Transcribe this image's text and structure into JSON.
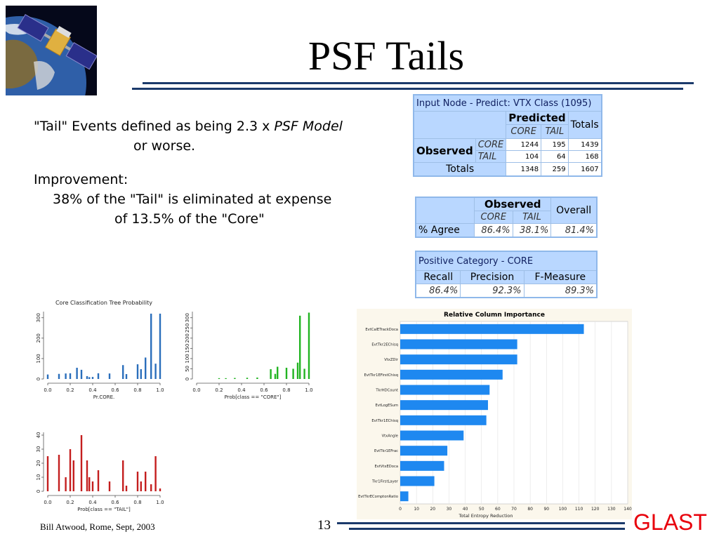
{
  "slide": {
    "title": "PSF Tails",
    "page_number": "13",
    "footer_left": "Bill Atwood,  Rome, Sept, 2003",
    "logo_text": "GLAST"
  },
  "body": {
    "line1_a": "\"Tail\" Events defined as being 2.3 x ",
    "line1_b": "PSF Model",
    "line2": "or worse.",
    "line3": "Improvement:",
    "line4": "38% of the \"Tail\" is eliminated at expense",
    "line5": "of 13.5% of the \"Core\""
  },
  "table1": {
    "title": "Input Node - Predict: VTX Class (1095)",
    "predicted": "Predicted",
    "totals_col": "Totals",
    "core": "CORE",
    "tail": "TAIL",
    "observed": "Observed",
    "totals_row": "Totals",
    "rows": [
      {
        "label": "CORE",
        "v1": "1244",
        "v2": "195",
        "v3": "1439"
      },
      {
        "label": "TAIL",
        "v1": "104",
        "v2": "64",
        "v3": "168"
      }
    ],
    "total_vals": {
      "v1": "1348",
      "v2": "259",
      "v3": "1607"
    }
  },
  "table2": {
    "observed": "Observed",
    "overall": "Overall",
    "core": "CORE",
    "tail": "TAIL",
    "agree_label": "% Agree",
    "agree_core": "86.4%",
    "agree_tail": "38.1%",
    "agree_overall": "81.4%"
  },
  "table3": {
    "title": "Positive Category - CORE",
    "recall": "Recall",
    "precision": "Precision",
    "fmeasure": "F-Measure",
    "recall_v": "86.4%",
    "precision_v": "92.3%",
    "fmeasure_v": "89.3%"
  },
  "chart_data": [
    {
      "type": "bar",
      "title": "Core Classification Tree Probability",
      "xlabel": "Pr.CORE.",
      "ylabel": "",
      "color": "#2a6ebb",
      "xlim": [
        0,
        1
      ],
      "ylim": [
        0,
        330
      ],
      "xticks": [
        "0.0",
        "0.2",
        "0.4",
        "0.6",
        "0.8",
        "1.0"
      ],
      "yticks": [
        "0",
        "100",
        "200",
        "300"
      ],
      "ytick_values": [
        0,
        100,
        200,
        300
      ],
      "x": [
        0.0,
        0.1,
        0.16,
        0.2,
        0.26,
        0.3,
        0.35,
        0.37,
        0.4,
        0.45,
        0.55,
        0.67,
        0.7,
        0.8,
        0.83,
        0.87,
        0.92,
        0.96,
        1.0
      ],
      "values": [
        22,
        25,
        27,
        28,
        55,
        45,
        14,
        9,
        10,
        28,
        27,
        68,
        24,
        72,
        48,
        105,
        320,
        75,
        320
      ]
    },
    {
      "type": "bar",
      "title": "",
      "xlabel": "Prob[class == \"CORE\"]",
      "ylabel": "",
      "color": "#22b422",
      "xlim": [
        0,
        1
      ],
      "ylim": [
        0,
        330
      ],
      "xticks": [
        "0.0",
        "0.2",
        "0.4",
        "0.6",
        "0.8",
        "1.0"
      ],
      "yticks": [
        "0",
        "50",
        "100",
        "150",
        "200",
        "250",
        "300"
      ],
      "ytick_values": [
        0,
        50,
        100,
        150,
        200,
        250,
        300
      ],
      "x": [
        0.2,
        0.26,
        0.34,
        0.45,
        0.54,
        0.66,
        0.7,
        0.72,
        0.8,
        0.86,
        0.9,
        0.92,
        0.96,
        1.0
      ],
      "values": [
        4,
        4,
        5,
        6,
        7,
        48,
        25,
        60,
        55,
        50,
        80,
        310,
        50,
        325
      ]
    },
    {
      "type": "bar",
      "title": "",
      "xlabel": "Prob[class == \"TAIL\"]",
      "ylabel": "",
      "color": "#c41e1e",
      "xlim": [
        0,
        1
      ],
      "ylim": [
        0,
        42
      ],
      "xticks": [
        "0.0",
        "0.2",
        "0.4",
        "0.6",
        "0.8",
        "1.0"
      ],
      "yticks": [
        "0",
        "10",
        "20",
        "30",
        "40"
      ],
      "ytick_values": [
        0,
        10,
        20,
        30,
        40
      ],
      "x": [
        0.0,
        0.1,
        0.16,
        0.2,
        0.23,
        0.3,
        0.35,
        0.37,
        0.4,
        0.45,
        0.55,
        0.67,
        0.7,
        0.8,
        0.83,
        0.87,
        0.92,
        0.96,
        1.0
      ],
      "values": [
        25,
        26,
        10,
        30,
        22,
        40,
        22,
        10,
        7,
        15,
        7,
        22,
        4,
        14,
        7,
        14,
        5,
        25,
        2
      ]
    },
    {
      "type": "bar",
      "orientation": "horizontal",
      "title": "Relative Column Importance",
      "xlabel": "Total Entropy Reduction",
      "ylabel": "",
      "color": "#1e88f0",
      "xlim": [
        0,
        140
      ],
      "xticks": [
        "0",
        "10",
        "20",
        "30",
        "40",
        "50",
        "60",
        "70",
        "80",
        "90",
        "100",
        "110",
        "120",
        "130",
        "140"
      ],
      "xtick_values": [
        0,
        10,
        20,
        30,
        40,
        50,
        60,
        70,
        80,
        90,
        100,
        110,
        120,
        130,
        140
      ],
      "grid": true,
      "categories": [
        "EvtCalETrackDoca",
        "EvtTkr2EChisq",
        "VtxZDir",
        "EvtTkr1EFirstChisq",
        "TkrHDCount",
        "EvtLogESum",
        "EvtTkr1EChisq",
        "VtxAngle",
        "EvtTkr1EFrac",
        "EvtVtxEDoca",
        "Tkr1FirstLayer",
        "EvtTkrEComptonRatio"
      ],
      "values": [
        113,
        72,
        72,
        63,
        55,
        54,
        53,
        39,
        29,
        27,
        21,
        5
      ]
    }
  ]
}
